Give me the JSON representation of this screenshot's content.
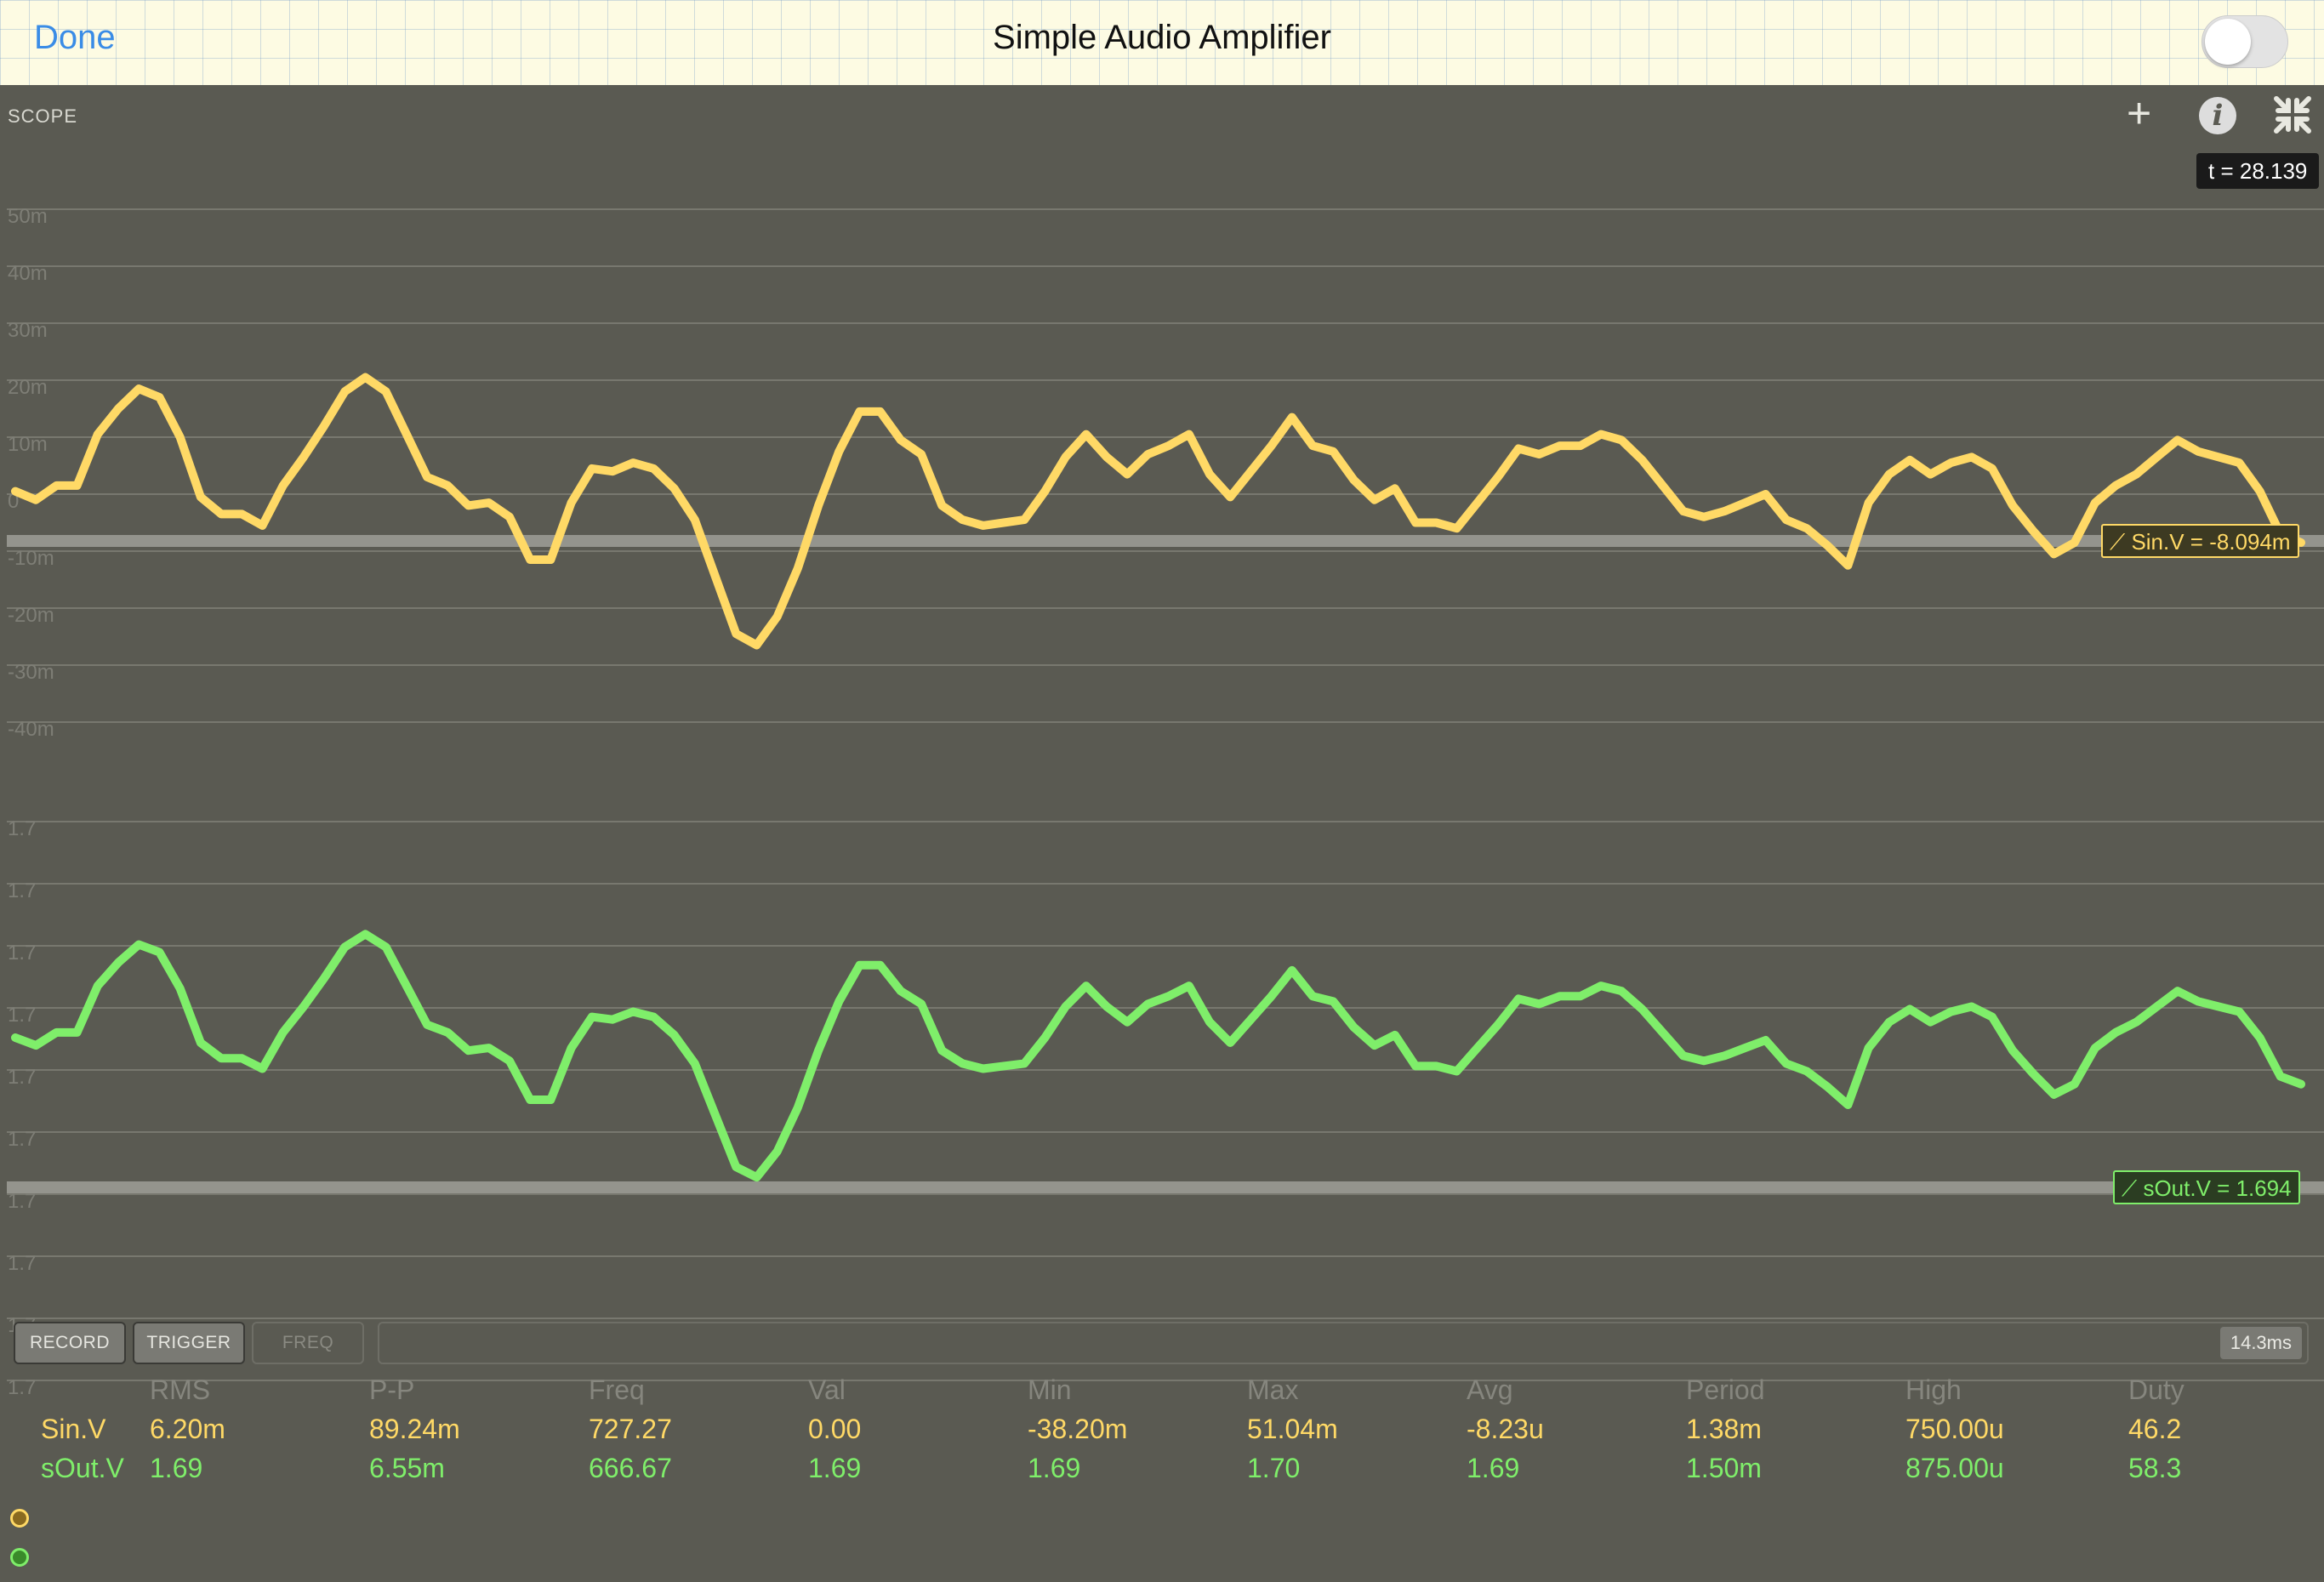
{
  "topbar": {
    "done_label": "Done",
    "title": "Simple Audio Amplifier",
    "toggle_on": false
  },
  "scope": {
    "label": "SCOPE",
    "time_readout": "t = 28.139",
    "icons": [
      "plus-icon",
      "info-icon",
      "collapse-icon"
    ],
    "upper_axis_ticks": [
      "50m",
      "40m",
      "30m",
      "20m",
      "10m",
      "0",
      "-10m",
      "-20m",
      "-30m",
      "-40m"
    ],
    "lower_axis_ticks": [
      "1.7",
      "1.7",
      "1.7",
      "1.7",
      "1.7",
      "1.7",
      "1.7",
      "1.7",
      "1.7",
      "1.7"
    ],
    "sin_readout": "Sin.V = -8.094m",
    "sout_readout": "sOut.V = 1.694",
    "colors": {
      "sin": "#ffd966",
      "sout": "#7fee6a",
      "background": "#5a5a52"
    }
  },
  "controls": {
    "record": "RECORD",
    "trigger": "TRIGGER",
    "freq": "FREQ",
    "timebase": "14.3ms"
  },
  "stats": {
    "headers": [
      "RMS",
      "P-P",
      "Freq",
      "Val",
      "Min",
      "Max",
      "Avg",
      "Period",
      "High",
      "Duty"
    ],
    "rows": [
      {
        "name": "Sin.V",
        "values": [
          "6.20m",
          "89.24m",
          "727.27",
          "0.00",
          "-38.20m",
          "51.04m",
          "-8.23u",
          "1.38m",
          "750.00u",
          "46.2"
        ]
      },
      {
        "name": "sOut.V",
        "values": [
          "1.69",
          "6.55m",
          "666.67",
          "1.69",
          "1.69",
          "1.70",
          "1.69",
          "1.50m",
          "875.00u",
          "58.3"
        ]
      }
    ]
  },
  "chart_data": {
    "type": "line",
    "series": [
      {
        "name": "Sin.V",
        "unit": "V",
        "values": [
          0.0005,
          -0.001,
          0.0015,
          0.0015,
          0.0105,
          0.015,
          0.0185,
          0.017,
          0.01,
          -0.0005,
          -0.0035,
          -0.0035,
          -0.0055,
          0.0015,
          0.0065,
          0.012,
          0.018,
          0.0205,
          0.018,
          0.0105,
          0.003,
          0.0015,
          -0.002,
          -0.0015,
          -0.004,
          -0.0115,
          -0.0115,
          -0.0015,
          0.0045,
          0.004,
          0.0055,
          0.0045,
          0.001,
          -0.0045,
          -0.0145,
          -0.0245,
          -0.0265,
          -0.0215,
          -0.013,
          -0.002,
          0.0075,
          0.0145,
          0.0145,
          0.0095,
          0.007,
          -0.002,
          -0.0045,
          -0.0055,
          -0.005,
          -0.0045,
          0.0005,
          0.0065,
          0.0105,
          0.0065,
          0.0035,
          0.007,
          0.0085,
          0.0105,
          0.0035,
          -0.0005,
          0.004,
          0.0085,
          0.0135,
          0.0085,
          0.0075,
          0.0025,
          -0.001,
          0.001,
          -0.005,
          -0.005,
          -0.006,
          -0.0015,
          0.003,
          0.008,
          0.007,
          0.0085,
          0.0085,
          0.0105,
          0.0095,
          0.006,
          0.0015,
          -0.003,
          -0.004,
          -0.003,
          -0.0015,
          0.0,
          -0.0045,
          -0.006,
          -0.009,
          -0.0125,
          -0.0015,
          0.0035,
          0.006,
          0.0035,
          0.0055,
          0.0065,
          0.0045,
          -0.002,
          -0.0065,
          -0.0105,
          -0.0085,
          -0.0015,
          0.0015,
          0.0035,
          0.0065,
          0.0095,
          0.0075,
          0.0065,
          0.0055,
          0.0005,
          -0.007,
          -0.0085
        ]
      },
      {
        "name": "sOut.V",
        "unit": "V"
      }
    ]
  }
}
